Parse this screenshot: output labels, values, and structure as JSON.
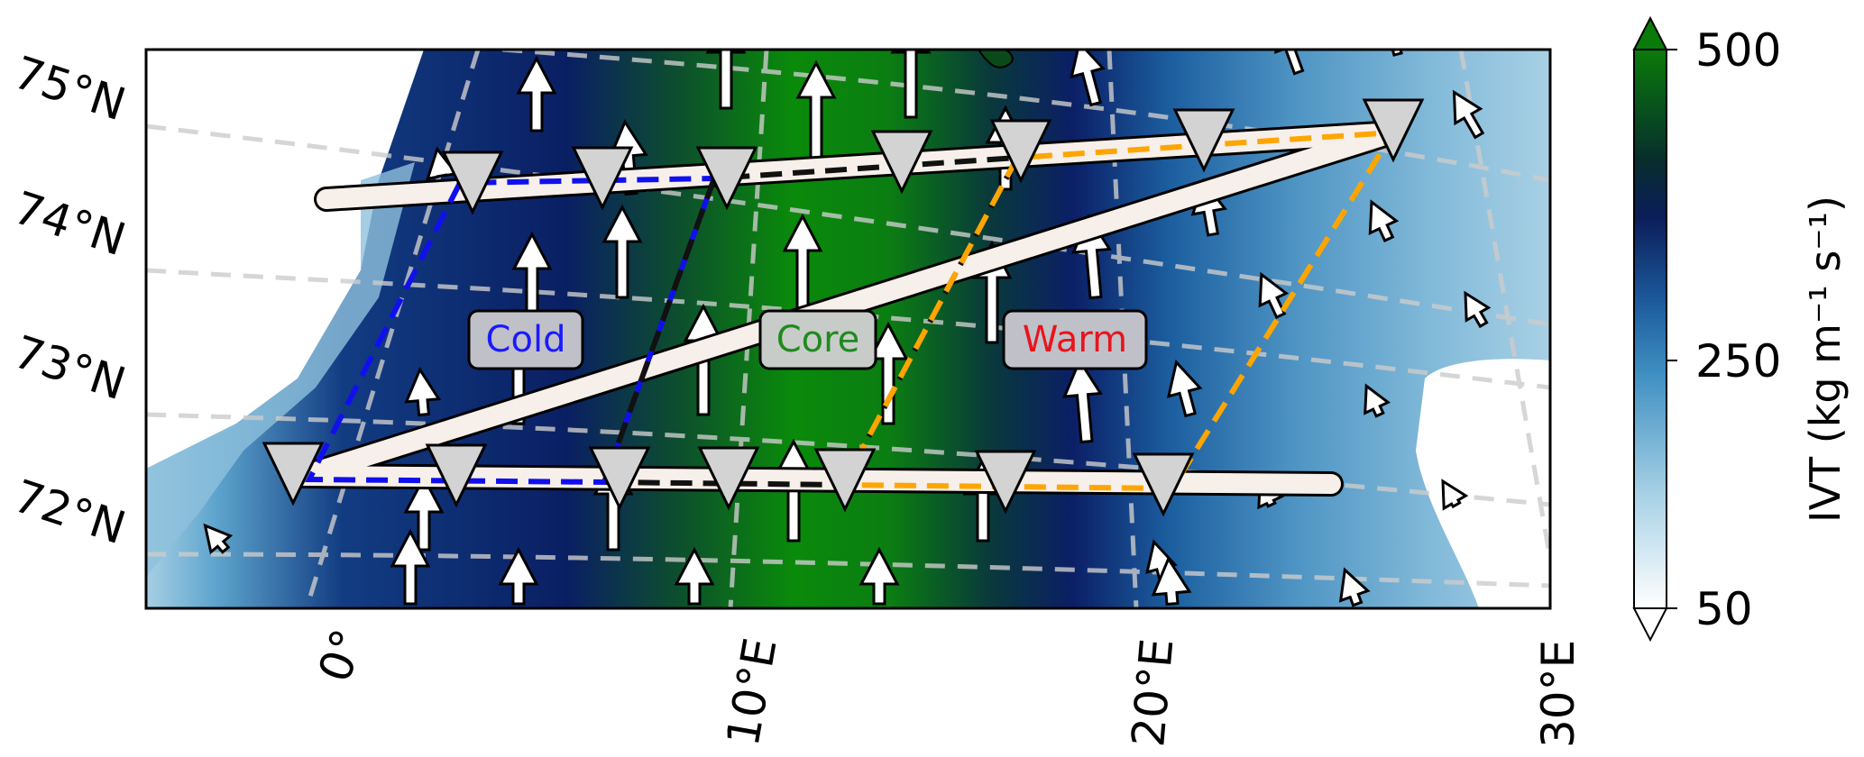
{
  "map": {
    "lat_labels": [
      "75°N",
      "74°N",
      "73°N",
      "72°N"
    ],
    "lon_labels": [
      "0°",
      "10°E",
      "20°E",
      "30°E"
    ],
    "regions": [
      {
        "label": "Cold",
        "color": "#1a1aff"
      },
      {
        "label": "Core",
        "color": "#1f8a1f"
      },
      {
        "label": "Warm",
        "color": "#e8141c"
      }
    ],
    "colors": {
      "low": "#ffffff",
      "light_blue": "#7fb7d8",
      "mid_blue": "#1f6fae",
      "navy": "#0b1d5a",
      "dark": "#072a2a",
      "green": "#0a7a0a",
      "cold_box": "#1010ee",
      "core_box": "#111111",
      "warm_box": "#ffa500",
      "flight_track": "#f7efe9",
      "dropsonde_marker": "#d3d3d3"
    },
    "vector_field": "white-arrows"
  },
  "colorbar": {
    "label": "IVT (kg m⁻¹ s⁻¹)",
    "ticks": [
      "500",
      "250",
      "50"
    ],
    "range": [
      50,
      500
    ],
    "extend": "both"
  }
}
